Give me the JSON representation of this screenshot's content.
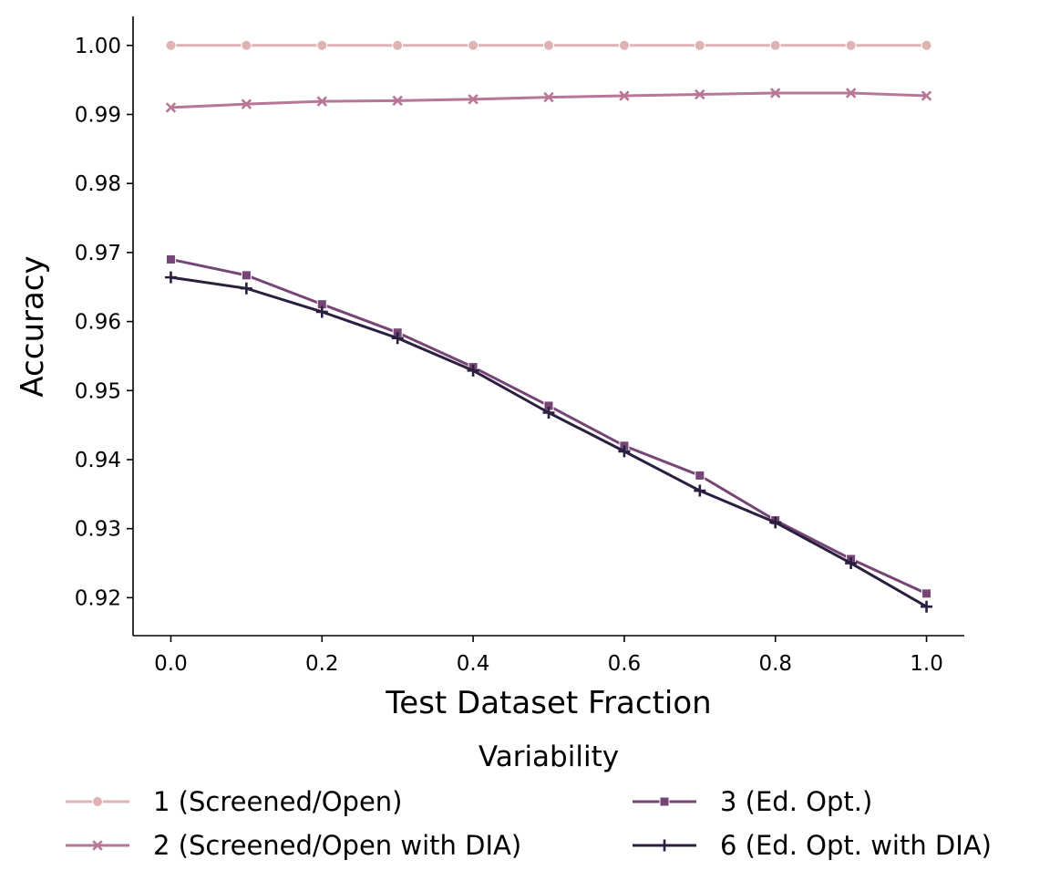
{
  "chart_data": {
    "type": "line",
    "title": "",
    "xlabel": "Test Dataset Fraction",
    "ylabel": "Accuracy",
    "xlim": [
      -0.05,
      1.05
    ],
    "ylim": [
      0.9145,
      1.0042
    ],
    "xticks": [
      0.0,
      0.2,
      0.4,
      0.6,
      0.8,
      1.0
    ],
    "xtick_labels": [
      "0.0",
      "0.2",
      "0.4",
      "0.6",
      "0.8",
      "1.0"
    ],
    "yticks": [
      0.92,
      0.93,
      0.94,
      0.95,
      0.96,
      0.97,
      0.98,
      0.99,
      1.0
    ],
    "ytick_labels": [
      "0.92",
      "0.93",
      "0.94",
      "0.95",
      "0.96",
      "0.97",
      "0.98",
      "0.99",
      "1.00"
    ],
    "grid": false,
    "legend": {
      "title": "Variability",
      "placement": "bottom-center",
      "columns": 2
    },
    "x": [
      0.0,
      0.1,
      0.2,
      0.3,
      0.4,
      0.5,
      0.6,
      0.7,
      0.8,
      0.9,
      1.0
    ],
    "series": [
      {
        "name": "1 (Screened/Open)",
        "color": "#dfb3b3",
        "marker": "circle",
        "values": [
          1.0,
          1.0,
          1.0,
          1.0,
          1.0,
          1.0,
          1.0,
          1.0,
          1.0,
          1.0,
          1.0
        ]
      },
      {
        "name": "2 (Screened/Open with DIA)",
        "color": "#b87796",
        "marker": "x",
        "values": [
          0.991,
          0.9915,
          0.9919,
          0.992,
          0.9922,
          0.9925,
          0.9927,
          0.9929,
          0.9931,
          0.9931,
          0.9927
        ]
      },
      {
        "name": "3 (Ed. Opt.)",
        "color": "#764576",
        "marker": "square",
        "values": [
          0.969,
          0.9667,
          0.9625,
          0.9584,
          0.9534,
          0.9478,
          0.942,
          0.9377,
          0.9312,
          0.9256,
          0.9206
        ]
      },
      {
        "name": "6 (Ed. Opt. with DIA)",
        "color": "#2b1f3f",
        "marker": "plus",
        "values": [
          0.9664,
          0.9648,
          0.9614,
          0.9576,
          0.9529,
          0.9468,
          0.9412,
          0.9355,
          0.9309,
          0.925,
          0.9187
        ]
      }
    ]
  }
}
